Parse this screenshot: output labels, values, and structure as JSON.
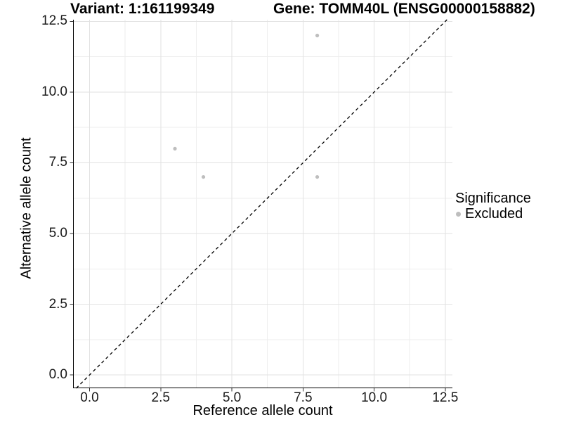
{
  "chart_data": {
    "type": "scatter",
    "title_left": "Variant: 1:161199349",
    "title_right": "Gene: TOMM40L (ENSG00000158882)",
    "xlabel": "Reference allele count",
    "ylabel": "Alternative allele count",
    "xlim": [
      -0.58,
      12.75
    ],
    "ylim": [
      -0.47,
      12.56
    ],
    "x_ticks": {
      "values": [
        0,
        2.5,
        5,
        7.5,
        10,
        12.5
      ],
      "labels": [
        "0.0",
        "2.5",
        "5.0",
        "7.5",
        "10.0",
        "12.5"
      ]
    },
    "y_ticks": {
      "values": [
        0,
        2.5,
        5,
        7.5,
        10,
        12.5
      ],
      "labels": [
        "0.0",
        "2.5",
        "5.0",
        "7.5",
        "10.0",
        "12.5"
      ]
    },
    "x_minor_ticks": [
      1.25,
      3.75,
      6.25,
      8.75,
      11.25
    ],
    "y_minor_ticks": [
      1.25,
      3.75,
      6.25,
      8.75,
      11.25
    ],
    "grid": "major-and-minor",
    "reference_line": {
      "type": "identity",
      "equation": "y = x",
      "style": "dashed",
      "color": "#000000"
    },
    "series": [
      {
        "name": "Excluded",
        "color": "#bebebe",
        "points": [
          [
            3,
            8
          ],
          [
            4,
            7
          ],
          [
            8,
            7
          ],
          [
            8,
            12
          ]
        ]
      }
    ],
    "legend": {
      "title": "Significance",
      "position": "right",
      "entries": [
        {
          "label": "Excluded",
          "color": "#bebebe",
          "marker": "circle"
        }
      ]
    },
    "colors": {
      "background": "#ffffff",
      "grid_major": "#e2e2e2",
      "grid_minor": "#eeeeee",
      "axis_line": "#000000",
      "tick_mark": "#333333",
      "text": "#000000",
      "point": "#bebebe"
    }
  }
}
